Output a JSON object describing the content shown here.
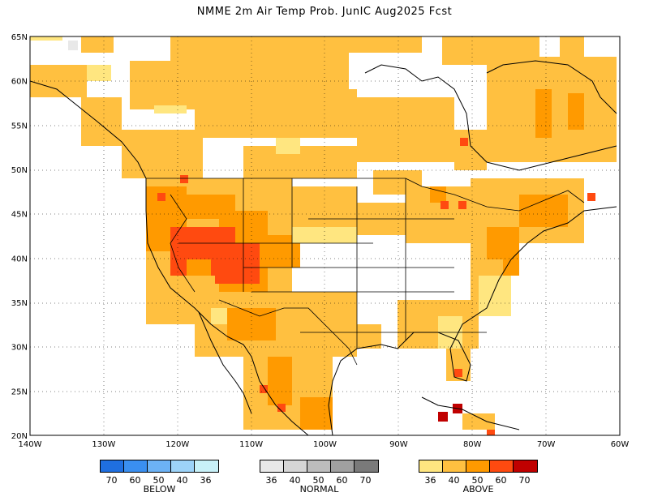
{
  "title": "NMME 2m Air Temp Prob. JunIC  Aug2025 Fcst",
  "map": {
    "lat_ticks": [
      "65N",
      "60N",
      "55N",
      "50N",
      "45N",
      "40N",
      "35N",
      "30N",
      "25N",
      "20N"
    ],
    "lon_ticks": [
      "140W",
      "130W",
      "120W",
      "110W",
      "100W",
      "90W",
      "80W",
      "70W",
      "60W"
    ],
    "extent": {
      "lon": [
        -140,
        -60
      ],
      "lat": [
        20,
        65
      ]
    },
    "gridlines": "dotted",
    "region": "North America"
  },
  "legend": {
    "below": {
      "caption": "BELOW",
      "colors": [
        "#1f6fe0",
        "#3a8ff0",
        "#6cb2f5",
        "#9dd3f8",
        "#c8f1f8"
      ],
      "labels": [
        "70",
        "60",
        "50",
        "40",
        "36"
      ]
    },
    "normal": {
      "caption": "NORMAL",
      "colors": [
        "#e8e8e8",
        "#d6d6d6",
        "#bdbdbd",
        "#a0a0a0",
        "#7a7a7a"
      ],
      "labels": [
        "36",
        "40",
        "50",
        "60",
        "70"
      ]
    },
    "above": {
      "caption": "ABOVE",
      "colors": [
        "#ffe680",
        "#ffc040",
        "#ff9a00",
        "#ff4a10",
        "#c00000"
      ],
      "labels": [
        "36",
        "40",
        "50",
        "60",
        "70"
      ]
    }
  }
}
